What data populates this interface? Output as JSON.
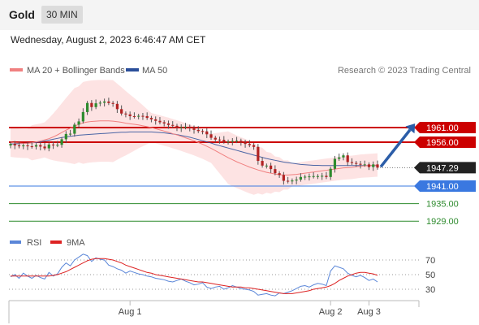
{
  "header": {
    "title": "Gold",
    "timeframe": "30 MIN"
  },
  "datetime": "Wednesday, August 2, 2023 6:46:47 AM CET",
  "legend": {
    "ma20": "MA 20 + Bollinger Bands",
    "ma50": "MA 50"
  },
  "credit": "Research © 2023 Trading Central",
  "colors": {
    "resistance": "#cc0000",
    "support": "#3a78e0",
    "target": "#2e8b2e",
    "ma20": "#f08080",
    "ma50": "#2b4f9a",
    "band": "#fcd9d9",
    "up": "#2e8b2e",
    "down": "#b22222",
    "arrow": "#2b5da8",
    "rsi": "#5a86d8",
    "ma9": "#dd2222"
  },
  "chart_data": [
    {
      "type": "line",
      "panel": "price",
      "ylim": [
        1922,
        1977
      ],
      "levels": [
        {
          "value": 1961.0,
          "label": "1961.00",
          "kind": "resistance"
        },
        {
          "value": 1956.0,
          "label": "1956.00",
          "kind": "resistance"
        },
        {
          "value": 1947.29,
          "label": "1947.29",
          "kind": "last"
        },
        {
          "value": 1941.0,
          "label": "1941.00",
          "kind": "support"
        },
        {
          "value": 1935.0,
          "label": "1935.00",
          "kind": "target"
        },
        {
          "value": 1929.0,
          "label": "1929.00",
          "kind": "target"
        }
      ],
      "x_ticks": [
        {
          "bar": 28,
          "label": "Aug 1"
        },
        {
          "bar": 75,
          "label": "Aug 2"
        },
        {
          "bar": 84,
          "label": "Aug 3"
        }
      ],
      "close": [
        1955.4,
        1954.9,
        1954.6,
        1954.9,
        1954.6,
        1954.5,
        1955.0,
        1954.5,
        1953.9,
        1955.2,
        1955.0,
        1955.1,
        1957.0,
        1958.8,
        1958.9,
        1962.0,
        1963.1,
        1966.3,
        1969.4,
        1968.0,
        1969.3,
        1969.5,
        1969.9,
        1969.4,
        1969.1,
        1967.3,
        1965.8,
        1965.5,
        1964.9,
        1964.8,
        1965.0,
        1964.9,
        1964.3,
        1963.8,
        1963.3,
        1962.8,
        1962.4,
        1961.9,
        1961.6,
        1960.8,
        1961.1,
        1961.3,
        1960.7,
        1960.2,
        1959.8,
        1959.7,
        1958.7,
        1957.5,
        1956.9,
        1956.8,
        1956.2,
        1956.2,
        1956.4,
        1956.5,
        1955.8,
        1955.4,
        1955.0,
        1954.4,
        1949.6,
        1948.0,
        1948.0,
        1946.8,
        1945.4,
        1944.8,
        1942.8,
        1942.6,
        1942.9,
        1943.2,
        1944.1,
        1944.2,
        1944.3,
        1944.4,
        1944.4,
        1944.5,
        1944.1,
        1946.9,
        1950.3,
        1950.8,
        1951.5,
        1949.2,
        1948.9,
        1948.6,
        1948.3,
        1948.4,
        1947.5,
        1948.4,
        1947.3
      ],
      "ma20": [
        1956.0,
        1955.8,
        1955.7,
        1955.6,
        1955.6,
        1955.8,
        1956.1,
        1956.4,
        1956.8,
        1957.2,
        1957.8,
        1958.5,
        1959.3,
        1960.1,
        1960.8,
        1961.5,
        1962.1,
        1962.6,
        1962.9,
        1963.1,
        1963.2,
        1963.3,
        1963.3,
        1963.3,
        1963.2,
        1963.0,
        1962.8,
        1962.5,
        1962.3,
        1962.1,
        1961.9,
        1961.6,
        1961.3,
        1961.0,
        1960.6,
        1960.2,
        1959.8,
        1959.4,
        1958.9,
        1958.5,
        1958.0,
        1957.5,
        1957.0,
        1956.5,
        1955.9,
        1955.3,
        1954.6,
        1953.9,
        1953.1,
        1952.3,
        1951.5,
        1950.7,
        1950.0,
        1949.3,
        1948.7,
        1948.1,
        1947.5,
        1947.0,
        1946.5,
        1946.1,
        1945.7,
        1945.4,
        1945.1,
        1944.9,
        1944.8,
        1944.8,
        1944.9,
        1945.0,
        1945.2,
        1945.4,
        1945.6,
        1945.8,
        1946.0,
        1946.2,
        1946.4,
        1946.6,
        1946.8,
        1947.0,
        1947.2,
        1947.3,
        1947.4,
        1947.6,
        1947.8,
        1947.9,
        1948.0,
        1948.1,
        1948.2
      ],
      "ma50": [
        1955.4,
        1955.4,
        1955.5,
        1955.6,
        1955.7,
        1955.8,
        1955.9,
        1956.1,
        1956.4,
        1956.7,
        1957.0,
        1957.3,
        1957.6,
        1957.8,
        1958.0,
        1958.2,
        1958.4,
        1958.5,
        1958.6,
        1958.7,
        1958.8,
        1958.9,
        1959.0,
        1959.1,
        1959.2,
        1959.3,
        1959.4,
        1959.4,
        1959.5,
        1959.5,
        1959.5,
        1959.5,
        1959.5,
        1959.5,
        1959.4,
        1959.3,
        1959.2,
        1959.0,
        1958.8,
        1958.6,
        1958.3,
        1958.0,
        1957.7,
        1957.3,
        1956.9,
        1956.5,
        1956.1,
        1955.7,
        1955.2,
        1954.8,
        1954.4,
        1954.0,
        1953.6,
        1953.2,
        1952.8,
        1952.4,
        1952.0,
        1951.6,
        1951.2,
        1950.8,
        1950.4,
        1950.1,
        1949.8,
        1949.5,
        1949.2,
        1949.0,
        1948.8,
        1948.6,
        1948.4,
        1948.3,
        1948.2,
        1948.1,
        1948.1,
        1948.0,
        1948.0,
        1948.0,
        1948.0,
        1948.0,
        1948.0,
        1948.0,
        1948.0,
        1948.0,
        1948.0,
        1948.0,
        1948.0,
        1948.0,
        1948.0
      ],
      "band_width": [
        5,
        5,
        5,
        5,
        5,
        6,
        6,
        6,
        6,
        7,
        8,
        9,
        10,
        11,
        12,
        13,
        13,
        14,
        14,
        14,
        14,
        14,
        14,
        14,
        14,
        13,
        12,
        11,
        10,
        9,
        8,
        7,
        6,
        5,
        5,
        5,
        5,
        5,
        5,
        5,
        5,
        5,
        5,
        5,
        5,
        5,
        5,
        5,
        6,
        7,
        8,
        9,
        9,
        9,
        9,
        9,
        9,
        9,
        8,
        8,
        7,
        7,
        6,
        6,
        5,
        5,
        4,
        4,
        4,
        4,
        4,
        4,
        4,
        4,
        4,
        4,
        4,
        4,
        4,
        4,
        4,
        4,
        4,
        4,
        4,
        4,
        4
      ]
    },
    {
      "type": "line",
      "panel": "rsi",
      "ylim": [
        15,
        82
      ],
      "series_labels": {
        "rsi": "RSI",
        "ma9": "9MA"
      },
      "y_ticks": [
        70,
        50,
        30
      ],
      "rsi": [
        47,
        50,
        45,
        52,
        48,
        45,
        49,
        46,
        44,
        53,
        48,
        51,
        60,
        66,
        62,
        70,
        74,
        78,
        76,
        68,
        73,
        71,
        70,
        63,
        61,
        58,
        56,
        52,
        55,
        53,
        51,
        50,
        48,
        47,
        45,
        44,
        43,
        41,
        40,
        42,
        44,
        41,
        39,
        36,
        37,
        39,
        33,
        31,
        33,
        34,
        30,
        32,
        35,
        33,
        31,
        30,
        29,
        27,
        22,
        23,
        24,
        22,
        21,
        25,
        24,
        26,
        28,
        31,
        34,
        35,
        33,
        36,
        38,
        37,
        35,
        55,
        62,
        60,
        58,
        52,
        49,
        47,
        49,
        46,
        42,
        44,
        40
      ],
      "ma9": [
        48,
        48,
        48,
        48,
        48,
        48,
        48,
        48,
        48,
        48,
        49,
        50,
        52,
        54,
        57,
        60,
        63,
        66,
        69,
        71,
        72,
        72,
        72,
        71,
        70,
        68,
        66,
        63,
        61,
        59,
        57,
        55,
        53,
        52,
        50,
        49,
        48,
        47,
        46,
        45,
        44,
        43,
        42,
        41,
        40,
        40,
        39,
        38,
        37,
        36,
        35,
        34,
        33,
        33,
        33,
        32,
        32,
        31,
        30,
        29,
        28,
        27,
        26,
        25,
        24,
        24,
        24,
        25,
        26,
        27,
        28,
        30,
        31,
        32,
        33,
        35,
        38,
        42,
        45,
        48,
        50,
        52,
        53,
        53,
        52,
        51,
        49
      ]
    }
  ]
}
